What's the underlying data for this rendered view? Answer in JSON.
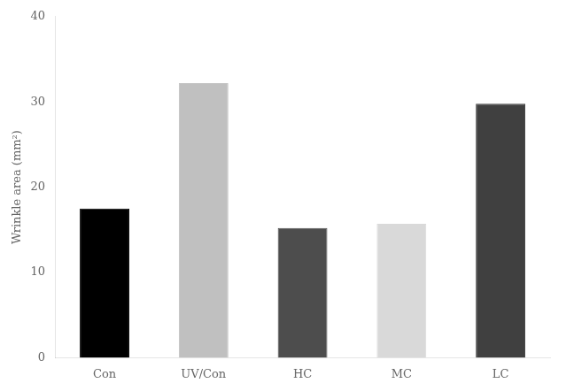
{
  "chart_data": {
    "type": "bar",
    "categories": [
      "Con",
      "UV/Con",
      "HC",
      "MC",
      "LC"
    ],
    "values": [
      17.5,
      32.2,
      15.2,
      15.7,
      29.8
    ],
    "colors": [
      "#000000",
      "#c0c0c0",
      "#4d4d4d",
      "#d9d9d9",
      "#404040"
    ],
    "ylabel": "Wrinkle area (mm²)",
    "ylim": [
      0,
      40
    ],
    "yticks": [
      0,
      10,
      20,
      30,
      40
    ],
    "grid": false
  }
}
